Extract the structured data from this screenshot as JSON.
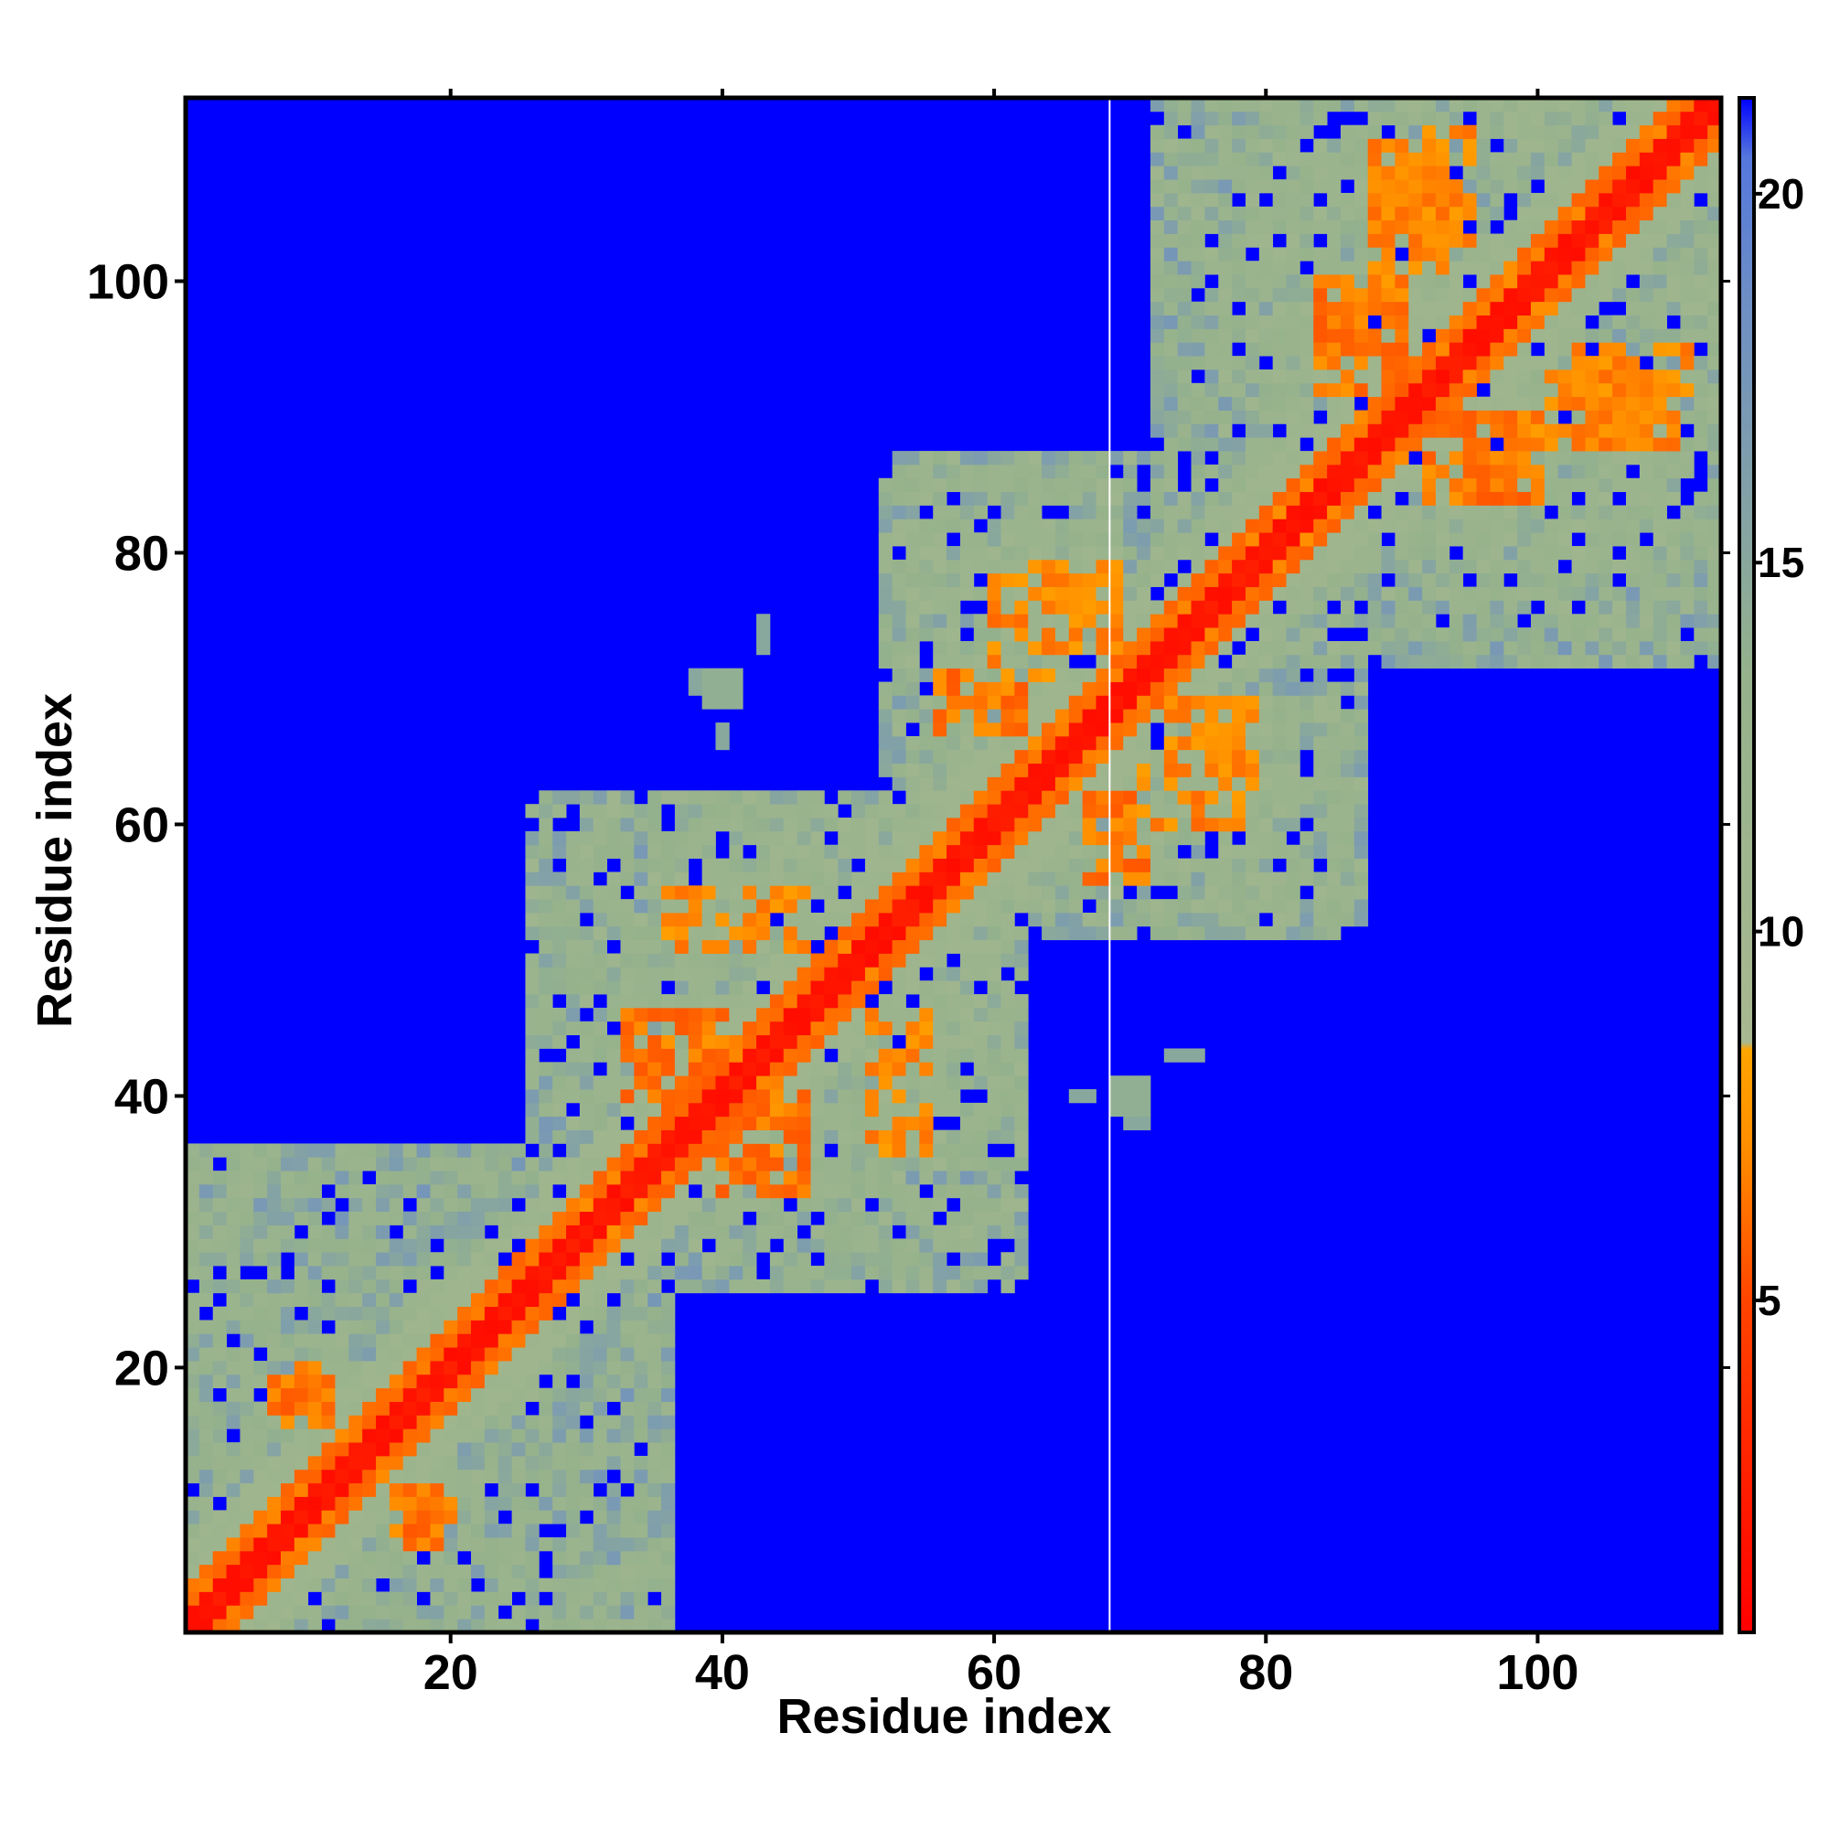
{
  "chart_data": {
    "type": "heatmap",
    "title": "",
    "xlabel": "Residue index",
    "ylabel": "Residue index",
    "n_residues": 113,
    "xlim": [
      0.5,
      113.5
    ],
    "ylim": [
      0.5,
      113.5
    ],
    "x_ticks": [
      20,
      40,
      60,
      80,
      100
    ],
    "y_ticks": [
      20,
      40,
      60,
      80,
      100
    ],
    "colorbar": {
      "range": [
        0.5,
        21.3
      ],
      "ticks": [
        5,
        10,
        15,
        20
      ],
      "stops": [
        {
          "value": 0.5,
          "color": "#ff0000"
        },
        {
          "value": 5.0,
          "color": "#ff4400"
        },
        {
          "value": 7.0,
          "color": "#ff8c00"
        },
        {
          "value": 8.4,
          "color": "#ffa500"
        },
        {
          "value": 8.5,
          "color": "#a8b890"
        },
        {
          "value": 13.5,
          "color": "#95b28c"
        },
        {
          "value": 18.5,
          "color": "#6e8fc4"
        },
        {
          "value": 20.5,
          "color": "#5577dd"
        },
        {
          "value": 21.3,
          "color": "#0000ff"
        }
      ]
    },
    "background_value": 21.3,
    "white_line_x": 68.5,
    "diagonal_bands": [
      {
        "half_width": 1.6,
        "value": 2.0
      },
      {
        "half_width": 3.4,
        "value": 6.5
      },
      {
        "half_width": 6.0,
        "value": 11.5
      },
      {
        "half_width": 9.0,
        "value": 16.0
      }
    ],
    "domains": [
      {
        "x": [
          1,
          36
        ],
        "y": [
          1,
          36
        ],
        "value": 14.5
      },
      {
        "x": [
          30,
          62
        ],
        "y": [
          26,
          62
        ],
        "value": 14.0
      },
      {
        "x": [
          52,
          87
        ],
        "y": [
          53,
          82
        ],
        "value": 14.0
      },
      {
        "x": [
          79,
          113
        ],
        "y": [
          72,
          113
        ],
        "value": 14.0
      },
      {
        "x": [
          1,
          5
        ],
        "y": [
          18,
          28
        ],
        "value": 15.5
      },
      {
        "x": [
          38,
          58
        ],
        "y": [
          26,
          45
        ],
        "value": 14.5
      },
      {
        "x": [
          30,
          50
        ],
        "y": [
          46,
          62
        ],
        "value": 14.5
      },
      {
        "x": [
          68,
          86
        ],
        "y": [
          52,
          68
        ],
        "value": 14.5
      },
      {
        "x": [
          55,
          68
        ],
        "y": [
          70,
          86
        ],
        "value": 14.5
      },
      {
        "x": [
          90,
          110
        ],
        "y": [
          72,
          92
        ],
        "value": 14.5
      },
      {
        "x": [
          74,
          92
        ],
        "y": [
          94,
          113
        ],
        "value": 14.5
      }
    ],
    "contact_clusters": [
      {
        "x": [
          8,
          11
        ],
        "y": [
          16,
          20
        ],
        "value": 6.5
      },
      {
        "x": [
          17,
          20
        ],
        "y": [
          7,
          11
        ],
        "value": 6.5
      },
      {
        "x": [
          34,
          40
        ],
        "y": [
          40,
          46
        ],
        "value": 6.5
      },
      {
        "x": [
          40,
          46
        ],
        "y": [
          33,
          40
        ],
        "value": 6.5
      },
      {
        "x": [
          36,
          46
        ],
        "y": [
          51,
          55
        ],
        "value": 7.0
      },
      {
        "x": [
          56,
          62
        ],
        "y": [
          67,
          71
        ],
        "value": 6.5
      },
      {
        "x": [
          67,
          70
        ],
        "y": [
          56,
          62
        ],
        "value": 6.5
      },
      {
        "x": [
          71,
          78
        ],
        "y": [
          60,
          64
        ],
        "value": 7.0
      },
      {
        "x": [
          63,
          69
        ],
        "y": [
          73,
          79
        ],
        "value": 7.0
      },
      {
        "x": [
          84,
          90
        ],
        "y": [
          95,
          100
        ],
        "value": 6.5
      },
      {
        "x": [
          92,
          98
        ],
        "y": [
          84,
          90
        ],
        "value": 6.5
      },
      {
        "x": [
          100,
          110
        ],
        "y": [
          88,
          93
        ],
        "value": 7.0
      },
      {
        "x": [
          88,
          95
        ],
        "y": [
          103,
          111
        ],
        "value": 7.0
      }
    ],
    "isolated_points": [
      {
        "x": [
          39,
          41
        ],
        "y": [
          69,
          71
        ],
        "value": 14.0
      },
      {
        "x": [
          66,
          67
        ],
        "y": [
          40,
          40
        ],
        "value": 15.0
      },
      {
        "x": [
          70,
          71
        ],
        "y": [
          38,
          40
        ],
        "value": 15.0
      },
      {
        "x": [
          43,
          43
        ],
        "y": [
          73,
          75
        ],
        "value": 15.0
      },
      {
        "x": [
          60,
          62
        ],
        "y": [
          79,
          81
        ],
        "value": 15.0
      }
    ]
  }
}
